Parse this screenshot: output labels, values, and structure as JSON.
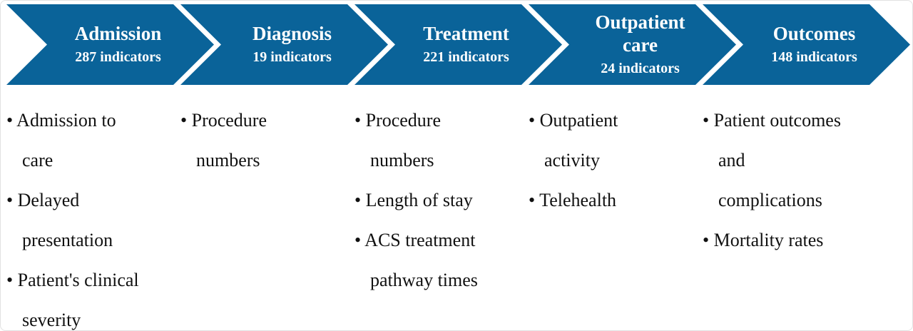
{
  "colors": {
    "chevron": "#0A6399",
    "text": "#111111"
  },
  "stages": [
    {
      "title": "Admission",
      "count": "287 indicators",
      "bullets": [
        [
          "Admission to",
          "care"
        ],
        [
          "Delayed",
          "presentation"
        ],
        [
          "Patient's clinical",
          "severity"
        ]
      ]
    },
    {
      "title": "Diagnosis",
      "count": "19 indicators",
      "bullets": [
        [
          "Procedure",
          "numbers"
        ]
      ]
    },
    {
      "title": "Treatment",
      "count": "221 indicators",
      "bullets": [
        [
          "Procedure",
          "numbers"
        ],
        [
          "Length of stay"
        ],
        [
          "ACS treatment",
          "pathway times"
        ]
      ]
    },
    {
      "title": "Outpatient care",
      "count": "24 indicators",
      "bullets": [
        [
          "Outpatient",
          "activity"
        ],
        [
          "Telehealth"
        ]
      ]
    },
    {
      "title": "Outcomes",
      "count": "148 indicators",
      "bullets": [
        [
          "Patient outcomes",
          "and",
          "complications"
        ],
        [
          "Mortality rates"
        ]
      ]
    }
  ]
}
